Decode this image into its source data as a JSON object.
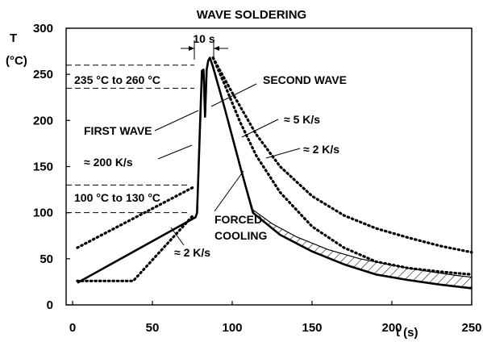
{
  "chart_data": {
    "type": "line",
    "title": "WAVE SOLDERING",
    "ylabel": "T",
    "ylabel_unit": "(°C)",
    "xlabel": "t (s)",
    "xlim": [
      0,
      250
    ],
    "ylim": [
      0,
      300
    ],
    "xticks": [
      0,
      50,
      100,
      150,
      200,
      250
    ],
    "yticks": [
      0,
      50,
      100,
      150,
      200,
      250,
      300
    ],
    "grid": false,
    "series": [
      {
        "style": "solid",
        "x": [
          3,
          77,
          78,
          81,
          82,
          83,
          84,
          85,
          86,
          88,
          95,
          105,
          113,
          130,
          150,
          170,
          190,
          210,
          230,
          250
        ],
        "y": [
          24,
          95,
          100,
          254,
          255,
          204,
          255,
          265,
          268,
          258,
          215,
          150,
          100,
          76,
          58,
          44,
          33,
          27,
          22,
          18
        ]
      },
      {
        "style": "solid-thin",
        "x": [
          105,
          113,
          125,
          140,
          160,
          180,
          200,
          220,
          240,
          250
        ],
        "y": [
          150,
          103,
          88,
          74,
          60,
          50,
          43,
          37,
          32,
          30
        ]
      },
      {
        "style": "dotted",
        "x": [
          3,
          76
        ],
        "y": [
          62,
          128
        ]
      },
      {
        "style": "dotted",
        "x": [
          3,
          38,
          76
        ],
        "y": [
          26,
          26,
          98
        ]
      },
      {
        "style": "dotted",
        "x": [
          88,
          95,
          105,
          115,
          130,
          150,
          170,
          190,
          210,
          230,
          250
        ],
        "y": [
          268,
          240,
          198,
          162,
          122,
          85,
          62,
          47,
          40,
          36,
          33
        ]
      },
      {
        "style": "dotted",
        "x": [
          88,
          100,
          115,
          130,
          150,
          170,
          190,
          210,
          230,
          250
        ],
        "y": [
          268,
          230,
          185,
          150,
          118,
          97,
          83,
          73,
          64,
          57
        ]
      }
    ],
    "reference_lines": [
      {
        "orientation": "horizontal",
        "y": 260
      },
      {
        "orientation": "horizontal",
        "y": 235
      },
      {
        "orientation": "horizontal",
        "y": 130
      },
      {
        "orientation": "horizontal",
        "y": 100
      }
    ],
    "annotations": {
      "duration": "10 s",
      "peak_range": "235 °C to 260 °C",
      "preheat_range": "100 °C to 130 °C",
      "first_wave": "FIRST WAVE",
      "second_wave": "SECOND WAVE",
      "rate_200": "≈ 200 K/s",
      "rate_5": "≈ 5 K/s",
      "rate_2_upper": "≈ 2 K/s",
      "rate_2_lower": "≈ 2 K/s",
      "forced_cooling_1": "FORCED",
      "forced_cooling_2": "COOLING"
    }
  }
}
